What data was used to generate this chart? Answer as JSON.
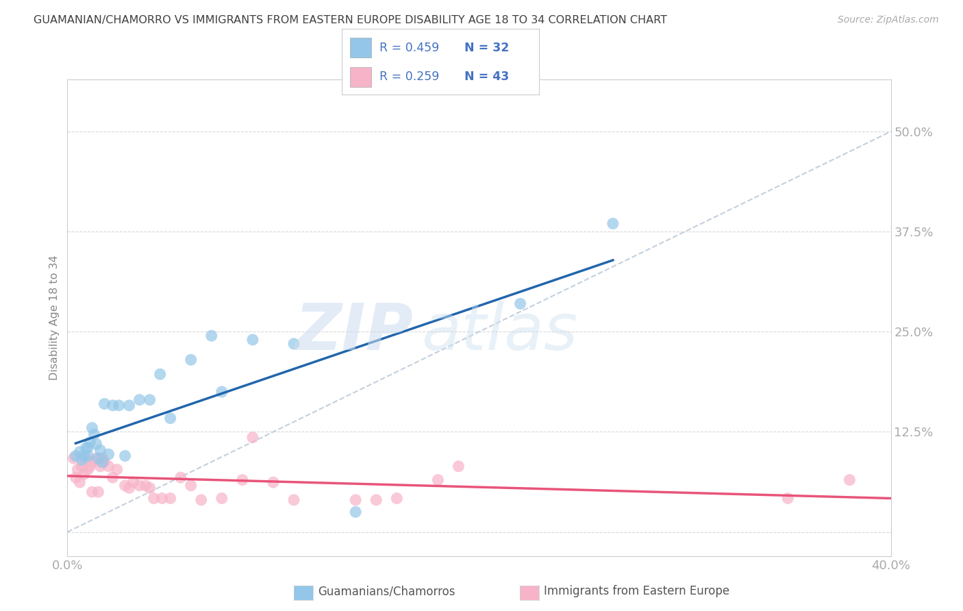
{
  "title": "GUAMANIAN/CHAMORRO VS IMMIGRANTS FROM EASTERN EUROPE DISABILITY AGE 18 TO 34 CORRELATION CHART",
  "source": "Source: ZipAtlas.com",
  "ylabel": "Disability Age 18 to 34",
  "xmin": 0.0,
  "xmax": 0.4,
  "ymin": -0.03,
  "ymax": 0.565,
  "yticks": [
    0.0,
    0.125,
    0.25,
    0.375,
    0.5
  ],
  "ytick_labels": [
    "",
    "12.5%",
    "25.0%",
    "37.5%",
    "50.0%"
  ],
  "xticks": [
    0.0,
    0.1,
    0.2,
    0.3,
    0.4
  ],
  "xtick_labels": [
    "0.0%",
    "",
    "",
    "",
    "40.0%"
  ],
  "legend_label1": "Guamanians/Chamorros",
  "legend_label2": "Immigrants from Eastern Europe",
  "R1": "0.459",
  "N1": "32",
  "R2": "0.259",
  "N2": "43",
  "color_blue": "#93c6e8",
  "color_pink": "#f7b3c8",
  "color_blue_line": "#2166ac",
  "color_pink_line": "#e8547a",
  "color_diag": "#b8c8d8",
  "watermark_zip": "ZIP",
  "watermark_atlas": "atlas",
  "blue_x": [
    0.004,
    0.006,
    0.007,
    0.008,
    0.009,
    0.01,
    0.01,
    0.011,
    0.012,
    0.013,
    0.014,
    0.015,
    0.016,
    0.017,
    0.018,
    0.02,
    0.022,
    0.025,
    0.028,
    0.03,
    0.035,
    0.04,
    0.045,
    0.05,
    0.06,
    0.07,
    0.075,
    0.09,
    0.11,
    0.14,
    0.22,
    0.265
  ],
  "blue_y": [
    0.095,
    0.1,
    0.09,
    0.095,
    0.105,
    0.105,
    0.095,
    0.112,
    0.13,
    0.122,
    0.11,
    0.092,
    0.102,
    0.087,
    0.16,
    0.097,
    0.158,
    0.158,
    0.095,
    0.158,
    0.165,
    0.165,
    0.197,
    0.142,
    0.215,
    0.245,
    0.175,
    0.24,
    0.235,
    0.025,
    0.285,
    0.385
  ],
  "pink_x": [
    0.003,
    0.004,
    0.005,
    0.006,
    0.007,
    0.008,
    0.009,
    0.01,
    0.011,
    0.012,
    0.013,
    0.014,
    0.015,
    0.016,
    0.017,
    0.018,
    0.02,
    0.022,
    0.024,
    0.028,
    0.03,
    0.032,
    0.035,
    0.038,
    0.04,
    0.042,
    0.046,
    0.05,
    0.055,
    0.06,
    0.065,
    0.075,
    0.085,
    0.09,
    0.1,
    0.11,
    0.14,
    0.15,
    0.16,
    0.18,
    0.19,
    0.35,
    0.38
  ],
  "pink_y": [
    0.092,
    0.068,
    0.078,
    0.062,
    0.082,
    0.072,
    0.092,
    0.078,
    0.082,
    0.05,
    0.088,
    0.092,
    0.05,
    0.082,
    0.092,
    0.088,
    0.082,
    0.068,
    0.078,
    0.058,
    0.055,
    0.062,
    0.058,
    0.058,
    0.055,
    0.042,
    0.042,
    0.042,
    0.068,
    0.058,
    0.04,
    0.042,
    0.065,
    0.118,
    0.062,
    0.04,
    0.04,
    0.04,
    0.042,
    0.065,
    0.082,
    0.042,
    0.065
  ],
  "grid_color": "#d8d8d8",
  "background_color": "#ffffff",
  "title_color": "#404040",
  "tick_label_color": "#4472c4",
  "legend_r_color": "#4472c4"
}
